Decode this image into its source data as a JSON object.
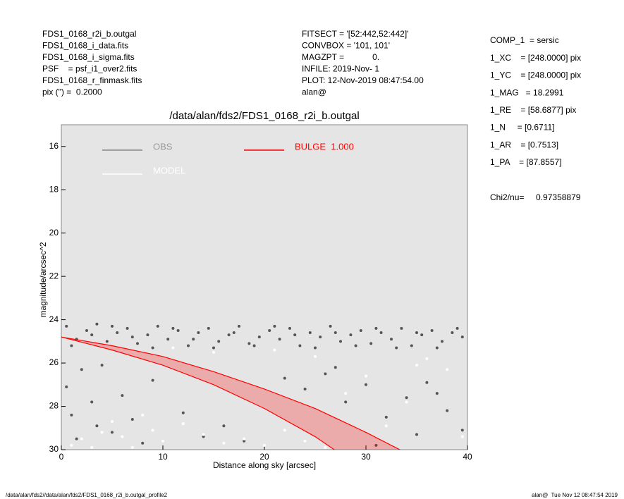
{
  "header": {
    "left": [
      "FDS1_0168_r2i_b.outgal",
      "FDS1_0168_i_data.fits",
      "FDS1_0168_i_sigma.fits",
      "PSF    = psf_i1_over2.fits",
      "FDS1_0168_r_finmask.fits",
      "pix (\") =  0.2000"
    ],
    "middle": [
      "FITSECT = '[52:442,52:442]'",
      "CONVBOX = '101, 101'",
      "MAGZPT =            0.",
      "INFILE: 2019-Nov- 1",
      "PLOT: 12-Nov-2019 08:47:54.00",
      "alan@"
    ],
    "right": [
      "COMP_1  = sersic",
      "1_XC    = [248.0000] pix",
      "1_YC    = [248.0000] pix",
      "1_MAG   = 18.2991",
      "1_RE    = [58.6877] pix",
      "1_N     = [0.6711]",
      "1_AR    = [0.7513]",
      "1_PA    = [87.8557]"
    ],
    "chi": "Chi2/nu=     0.97358879"
  },
  "footer": {
    "left": "/data/alan/fds2//data/alan/fds2/FDS1_0168_r2i_b.outgal_profile2",
    "right": "alan@  Tue Nov 12 08:47:54 2019"
  },
  "chart_data": {
    "type": "scatter",
    "title": "/data/alan/fds2/FDS1_0168_r2i_b.outgal",
    "x_label": "Distance along sky [arcsec]",
    "y_label": "magnitude/arcsec^2",
    "xlim": [
      0,
      40
    ],
    "ylim": [
      30,
      15
    ],
    "xticks": [
      0,
      10,
      20,
      30,
      40
    ],
    "yticks": [
      16,
      18,
      20,
      22,
      24,
      26,
      28,
      30
    ],
    "background": "#e5e5e5",
    "series": [
      {
        "name": "OBS",
        "color": "#555555",
        "x": [
          0.5,
          1.5,
          2.5,
          3.5,
          4.5,
          5.5,
          6.5,
          7.5,
          8.5,
          9.5,
          10.5,
          11.5,
          12.5,
          13.5,
          14.5,
          15.5,
          16.5,
          17.5,
          18.5,
          19.5,
          20.5,
          21.5,
          22.5,
          23.5,
          24.5,
          25.5,
          26.5,
          27.5,
          28.5,
          29.5,
          30.5,
          31.5,
          32.5,
          33.5,
          34.5,
          35.5,
          36.5,
          37.5,
          38.5,
          39.5,
          1,
          3,
          5,
          7,
          9,
          11,
          13,
          15,
          17,
          19,
          21,
          23,
          25,
          27,
          29,
          31,
          33,
          35,
          37,
          39,
          0.5,
          1,
          1.5,
          2,
          3,
          3.5,
          4,
          5,
          6,
          7,
          8,
          9,
          12,
          14,
          16,
          18,
          22,
          24,
          26,
          28,
          30,
          32,
          34,
          36,
          38,
          39.5,
          27,
          31,
          35,
          37
        ],
        "values": [
          24.3,
          24.9,
          24.5,
          24.2,
          25.0,
          24.6,
          24.4,
          25.1,
          24.7,
          24.3,
          24.9,
          24.5,
          25.2,
          24.6,
          24.4,
          25.0,
          24.7,
          24.3,
          25.1,
          24.8,
          24.5,
          24.9,
          24.4,
          25.2,
          24.6,
          24.8,
          24.3,
          25.0,
          24.7,
          24.5,
          25.1,
          24.6,
          24.9,
          24.4,
          25.2,
          24.7,
          24.5,
          25.0,
          24.6,
          24.8,
          25.2,
          24.7,
          24.3,
          24.8,
          25.3,
          24.4,
          24.9,
          25.3,
          24.6,
          25.2,
          24.3,
          24.7,
          25.3,
          24.6,
          25.2,
          24.4,
          25.3,
          24.6,
          25.3,
          24.4,
          27.1,
          28.4,
          29.5,
          26.3,
          27.8,
          28.9,
          26.1,
          29.2,
          27.5,
          28.6,
          29.7,
          26.8,
          28.3,
          29.4,
          28.9,
          29.6,
          26.7,
          27.2,
          26.5,
          27.8,
          27.0,
          28.5,
          27.6,
          26.9,
          28.2,
          29.1,
          26.2,
          29.8,
          29.3,
          27.4
        ]
      },
      {
        "name": "MODEL",
        "color": "#ffffff",
        "x": [
          1,
          2,
          3,
          4,
          5,
          6,
          7,
          8,
          9,
          10,
          12,
          14,
          16,
          18,
          20,
          22,
          24,
          26,
          28,
          30,
          32,
          34,
          36,
          38,
          39.5,
          15,
          25,
          35,
          11,
          21
        ],
        "values": [
          29.8,
          29.5,
          29.9,
          29.2,
          28.7,
          29.4,
          29.9,
          28.4,
          29.1,
          29.6,
          28.8,
          29.3,
          29.7,
          29.5,
          29.8,
          29.1,
          29.6,
          29.9,
          27.4,
          26.6,
          28.9,
          27.8,
          25.8,
          26.3,
          29.4,
          25.5,
          25.7,
          26.1,
          25.3,
          25.4
        ]
      },
      {
        "name": "BULGE  1.000",
        "color": "#ff0000",
        "band": true,
        "x": [
          0,
          5,
          10,
          15,
          20,
          25,
          30,
          35
        ],
        "values": [
          24.8,
          25.2,
          25.7,
          26.4,
          27.2,
          28.1,
          29.2,
          30.4
        ],
        "values_low": [
          24.8,
          25.4,
          26.1,
          27.0,
          28.1,
          29.4,
          31.0,
          32.5
        ]
      }
    ]
  }
}
